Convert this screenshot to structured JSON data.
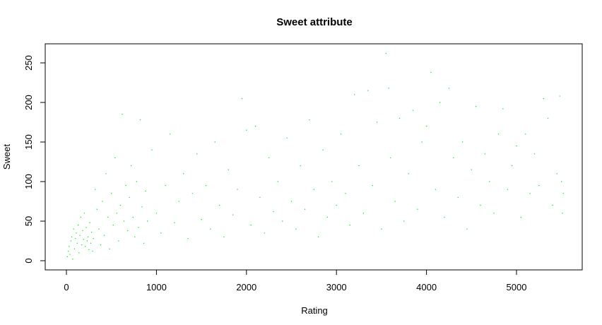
{
  "chart_data": {
    "type": "scatter",
    "title": "Sweet attribute",
    "xlabel": "Rating",
    "ylabel": "Sweet",
    "xlim": [
      0,
      5520
    ],
    "ylim": [
      0,
      262
    ],
    "x_ticks": [
      0,
      1000,
      2000,
      3000,
      4000,
      5000
    ],
    "x_tick_labels": [
      "0",
      "1000",
      "2000",
      "3000",
      "4000",
      "5000"
    ],
    "y_ticks": [
      0,
      50,
      100,
      150,
      200,
      250
    ],
    "y_tick_labels": [
      "0",
      "50",
      "100",
      "150",
      "200",
      "250"
    ],
    "grid": false,
    "legend": "none",
    "point_color": "#00ee00",
    "series": [
      {
        "values": [
          [
            10,
            5
          ],
          [
            20,
            12
          ],
          [
            30,
            18
          ],
          [
            40,
            8
          ],
          [
            50,
            25
          ],
          [
            60,
            30
          ],
          [
            70,
            2
          ],
          [
            80,
            40
          ],
          [
            90,
            15
          ],
          [
            100,
            28
          ],
          [
            110,
            35
          ],
          [
            120,
            22
          ],
          [
            130,
            45
          ],
          [
            140,
            10
          ],
          [
            150,
            32
          ],
          [
            160,
            55
          ],
          [
            170,
            20
          ],
          [
            180,
            38
          ],
          [
            190,
            27
          ],
          [
            200,
            60
          ],
          [
            210,
            18
          ],
          [
            220,
            42
          ],
          [
            230,
            25
          ],
          [
            240,
            30
          ],
          [
            250,
            14
          ],
          [
            260,
            48
          ],
          [
            270,
            22
          ],
          [
            280,
            36
          ],
          [
            290,
            12
          ],
          [
            300,
            28
          ],
          [
            320,
            90
          ],
          [
            340,
            65
          ],
          [
            360,
            40
          ],
          [
            380,
            20
          ],
          [
            400,
            75
          ],
          [
            420,
            32
          ],
          [
            440,
            110
          ],
          [
            460,
            55
          ],
          [
            480,
            15
          ],
          [
            500,
            85
          ],
          [
            520,
            45
          ],
          [
            540,
            130
          ],
          [
            560,
            60
          ],
          [
            580,
            25
          ],
          [
            600,
            70
          ],
          [
            620,
            185
          ],
          [
            640,
            50
          ],
          [
            660,
            95
          ],
          [
            680,
            38
          ],
          [
            700,
            80
          ],
          [
            720,
            120
          ],
          [
            740,
            55
          ],
          [
            760,
            30
          ],
          [
            780,
            100
          ],
          [
            800,
            42
          ],
          [
            820,
            178
          ],
          [
            840,
            68
          ],
          [
            860,
            22
          ],
          [
            880,
            88
          ],
          [
            900,
            50
          ],
          [
            950,
            140
          ],
          [
            1000,
            60
          ],
          [
            1050,
            35
          ],
          [
            1100,
            95
          ],
          [
            1150,
            160
          ],
          [
            1200,
            48
          ],
          [
            1250,
            75
          ],
          [
            1300,
            110
          ],
          [
            1350,
            28
          ],
          [
            1400,
            85
          ],
          [
            1450,
            135
          ],
          [
            1500,
            52
          ],
          [
            1550,
            95
          ],
          [
            1600,
            40
          ],
          [
            1650,
            150
          ],
          [
            1700,
            70
          ],
          [
            1750,
            30
          ],
          [
            1800,
            115
          ],
          [
            1850,
            58
          ],
          [
            1900,
            90
          ],
          [
            1950,
            205
          ],
          [
            2000,
            165
          ],
          [
            2050,
            45
          ],
          [
            2100,
            170
          ],
          [
            2150,
            80
          ],
          [
            2200,
            35
          ],
          [
            2250,
            130
          ],
          [
            2300,
            62
          ],
          [
            2350,
            100
          ],
          [
            2400,
            50
          ],
          [
            2450,
            155
          ],
          [
            2500,
            75
          ],
          [
            2550,
            40
          ],
          [
            2600,
            120
          ],
          [
            2650,
            65
          ],
          [
            2700,
            178
          ],
          [
            2750,
            90
          ],
          [
            2800,
            30
          ],
          [
            2850,
            140
          ],
          [
            2900,
            55
          ],
          [
            2950,
            100
          ],
          [
            3000,
            70
          ],
          [
            3050,
            160
          ],
          [
            3100,
            85
          ],
          [
            3150,
            45
          ],
          [
            3200,
            210
          ],
          [
            3250,
            120
          ],
          [
            3300,
            60
          ],
          [
            3350,
            215
          ],
          [
            3400,
            95
          ],
          [
            3450,
            175
          ],
          [
            3500,
            40
          ],
          [
            3550,
            262
          ],
          [
            3580,
            218
          ],
          [
            3600,
            130
          ],
          [
            3650,
            75
          ],
          [
            3700,
            180
          ],
          [
            3750,
            50
          ],
          [
            3800,
            110
          ],
          [
            3850,
            190
          ],
          [
            3900,
            65
          ],
          [
            3950,
            150
          ],
          [
            4000,
            170
          ],
          [
            4050,
            238
          ],
          [
            4100,
            90
          ],
          [
            4150,
            200
          ],
          [
            4200,
            55
          ],
          [
            4250,
            218
          ],
          [
            4300,
            130
          ],
          [
            4350,
            80
          ],
          [
            4400,
            150
          ],
          [
            4450,
            40
          ],
          [
            4500,
            115
          ],
          [
            4550,
            195
          ],
          [
            4600,
            70
          ],
          [
            4650,
            135
          ],
          [
            4700,
            100
          ],
          [
            4750,
            60
          ],
          [
            4800,
            160
          ],
          [
            4850,
            192
          ],
          [
            4900,
            90
          ],
          [
            4950,
            120
          ],
          [
            5000,
            145
          ],
          [
            5050,
            55
          ],
          [
            5100,
            160
          ],
          [
            5150,
            85
          ],
          [
            5200,
            135
          ],
          [
            5250,
            95
          ],
          [
            5300,
            205
          ],
          [
            5350,
            180
          ],
          [
            5400,
            70
          ],
          [
            5450,
            110
          ],
          [
            5480,
            208
          ],
          [
            5500,
            100
          ],
          [
            5510,
            60
          ],
          [
            5520,
            85
          ]
        ]
      }
    ]
  }
}
